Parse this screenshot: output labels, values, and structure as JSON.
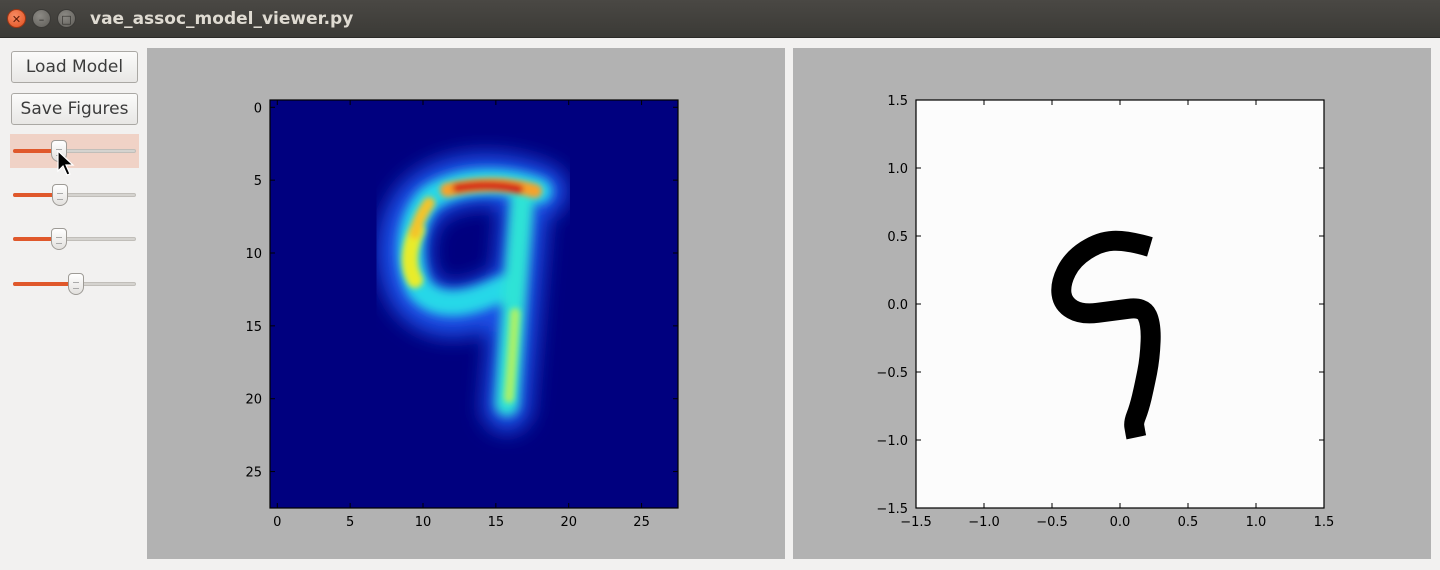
{
  "window": {
    "title": "vae_assoc_model_viewer.py",
    "controls": [
      "close",
      "minimize",
      "maximize"
    ]
  },
  "sidebar": {
    "load_label": "Load Model",
    "save_label": "Save Figures",
    "sliders": [
      {
        "value": 0.37,
        "active": true
      },
      {
        "value": 0.38,
        "active": false
      },
      {
        "value": 0.37,
        "active": false
      },
      {
        "value": 0.51,
        "active": false
      }
    ]
  },
  "heatmap": {
    "type": "heatmap",
    "colormap": "jet",
    "xlim": [
      -0.5,
      27.5
    ],
    "ylim": [
      27.5,
      -0.5
    ],
    "xticks": [
      "0",
      "5",
      "10",
      "15",
      "20",
      "25"
    ],
    "yticks": [
      "0",
      "5",
      "10",
      "15",
      "20",
      "25"
    ],
    "digit": "9"
  },
  "stroke_plot": {
    "type": "line",
    "xlim": [
      -1.5,
      1.5
    ],
    "ylim": [
      -1.5,
      1.5
    ],
    "xticks": [
      "−1.5",
      "−1.0",
      "−0.5",
      "0.0",
      "0.5",
      "1.0",
      "1.5"
    ],
    "yticks": [
      "1.5",
      "1.0",
      "0.5",
      "0.0",
      "−0.5",
      "−1.0",
      "−1.5"
    ],
    "stroke": {
      "x": [
        0.22,
        0.05,
        -0.15,
        -0.35,
        -0.44,
        -0.42,
        -0.28,
        -0.05,
        0.17,
        0.23,
        0.22,
        0.18,
        0.14,
        0.1,
        0.11,
        0.12
      ],
      "y": [
        0.42,
        0.47,
        0.46,
        0.33,
        0.15,
        0.0,
        -0.08,
        -0.05,
        -0.02,
        -0.15,
        -0.4,
        -0.6,
        -0.77,
        -0.87,
        -0.93,
        -0.98
      ]
    },
    "line_color": "#000000",
    "background": "#fcfcfc"
  },
  "colors": {
    "accent": "#e0582b",
    "panel_bg": "#b2b2b2"
  }
}
